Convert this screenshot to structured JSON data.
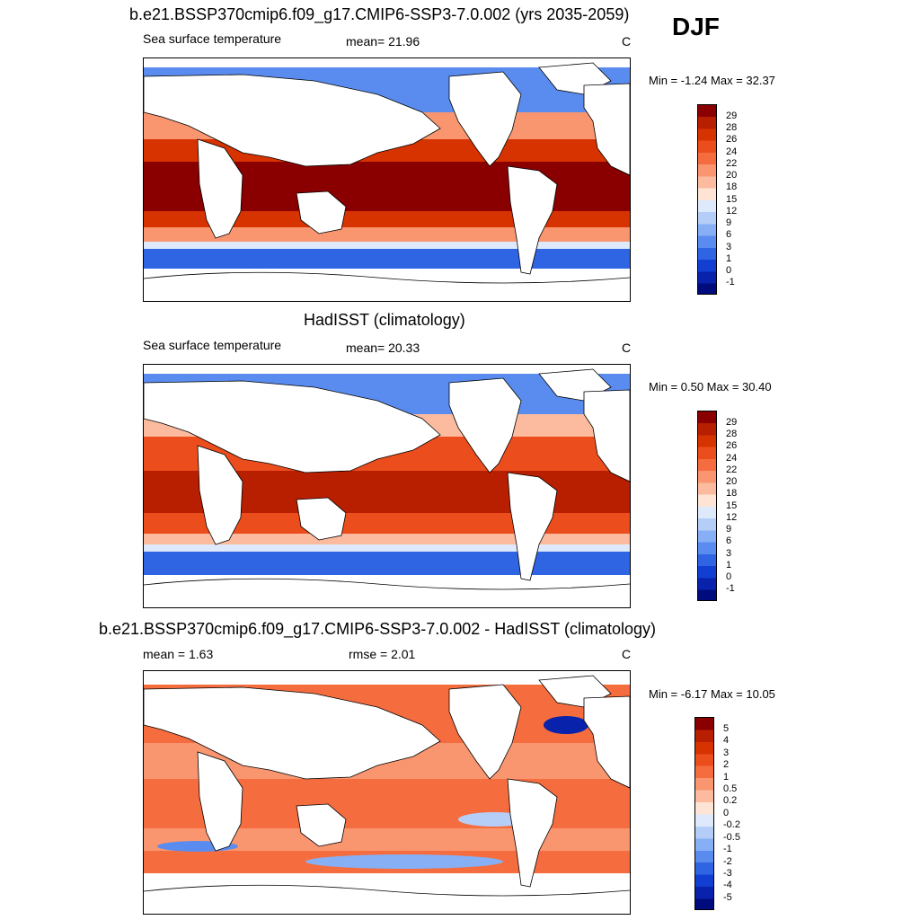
{
  "season": "DJF",
  "panels": [
    {
      "title": "b.e21.BSSP370cmip6.f09_g17.CMIP6-SSP3-7.0.002 (yrs 2035-2059)",
      "left": "Sea surface temperature",
      "center": "mean=  21.96",
      "units": "C",
      "minmax": "Min =  -1.24 Max =  32.37"
    },
    {
      "title": "HadISST (climatology)",
      "left": "Sea surface temperature",
      "center": "mean=  20.33",
      "units": "C",
      "minmax": "Min =   0.50 Max =  30.40"
    },
    {
      "title": "b.e21.BSSP370cmip6.f09_g17.CMIP6-SSP3-7.0.002 - HadISST (climatology)",
      "left": "mean =   1.63",
      "center": "rmse =   2.01",
      "units": "C",
      "minmax": "Min =  -6.17 Max =  10.05"
    }
  ],
  "colorbars": {
    "sst": {
      "labels": [
        "29",
        "28",
        "26",
        "24",
        "22",
        "20",
        "18",
        "15",
        "12",
        "9",
        "6",
        "3",
        "1",
        "0",
        "-1"
      ],
      "colors": [
        "#8a0000",
        "#b81e00",
        "#d63300",
        "#ec4d1c",
        "#f56d3f",
        "#f99670",
        "#fcbb9e",
        "#fde4d4",
        "#deeafb",
        "#b5cef8",
        "#86aff5",
        "#5a8cef",
        "#2f64e3",
        "#123fd2",
        "#0822ac",
        "#000c7c"
      ]
    },
    "diff": {
      "labels": [
        "5",
        "4",
        "3",
        "2",
        "1",
        "0.5",
        "0.2",
        "0",
        "-0.2",
        "-0.5",
        "-1",
        "-2",
        "-3",
        "-4",
        "-5"
      ],
      "colors": [
        "#8a0000",
        "#b81e00",
        "#d63300",
        "#ec4d1c",
        "#f56d3f",
        "#f99670",
        "#fcbb9e",
        "#fde4d4",
        "#deeafb",
        "#b5cef8",
        "#86aff5",
        "#5a8cef",
        "#2f64e3",
        "#123fd2",
        "#0822ac",
        "#000c7c"
      ]
    }
  }
}
